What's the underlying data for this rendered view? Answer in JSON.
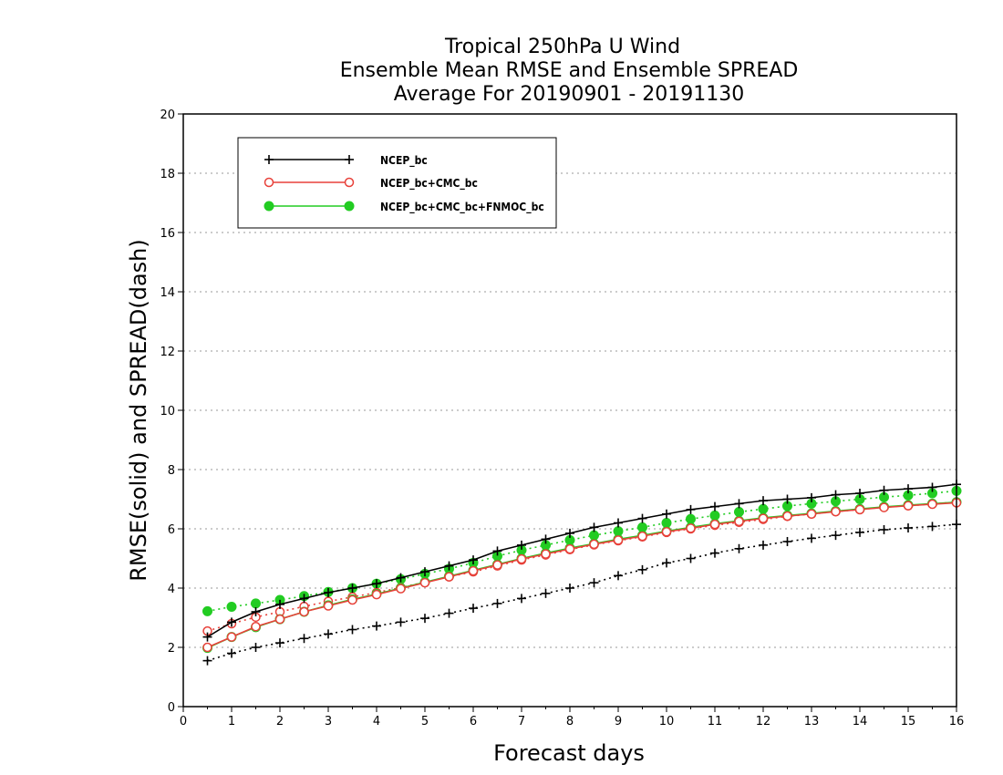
{
  "chart_data": {
    "type": "line",
    "title": [
      "Tropical 250hPa U Wind",
      "Ensemble Mean RMSE and Ensemble SPREAD",
      "Average For 20190901 - 20191130"
    ],
    "xlabel": "Forecast days",
    "ylabel": "RMSE(solid) and SPREAD(dash)",
    "xlim": [
      0,
      16
    ],
    "ylim": [
      0,
      20
    ],
    "xticks": [
      0,
      1,
      2,
      3,
      4,
      5,
      6,
      7,
      8,
      9,
      10,
      11,
      12,
      13,
      14,
      15,
      16
    ],
    "yticks": [
      0,
      2,
      4,
      6,
      8,
      10,
      12,
      14,
      16,
      18,
      20
    ],
    "grid": "dotted horizontal",
    "legend_position": "top-left",
    "x": [
      0.5,
      1,
      1.5,
      2,
      2.5,
      3,
      3.5,
      4,
      4.5,
      5,
      5.5,
      6,
      6.5,
      7,
      7.5,
      8,
      8.5,
      9,
      9.5,
      10,
      10.5,
      11,
      11.5,
      12,
      12.5,
      13,
      13.5,
      14,
      14.5,
      15,
      15.5,
      16
    ],
    "series": [
      {
        "name": "NCEP_bc",
        "color": "#000000",
        "marker": "plus",
        "rmse": [
          2.35,
          2.85,
          3.2,
          3.45,
          3.65,
          3.85,
          4.0,
          4.15,
          4.35,
          4.55,
          4.75,
          4.95,
          5.25,
          5.45,
          5.65,
          5.85,
          6.05,
          6.2,
          6.35,
          6.5,
          6.65,
          6.75,
          6.85,
          6.95,
          7.0,
          7.05,
          7.15,
          7.2,
          7.3,
          7.35,
          7.4,
          7.5
        ],
        "spread": [
          1.55,
          1.8,
          2.0,
          2.15,
          2.3,
          2.45,
          2.6,
          2.72,
          2.85,
          2.98,
          3.15,
          3.32,
          3.48,
          3.65,
          3.82,
          4.0,
          4.18,
          4.42,
          4.62,
          4.85,
          5.0,
          5.18,
          5.33,
          5.45,
          5.57,
          5.68,
          5.78,
          5.88,
          5.97,
          6.03,
          6.08,
          6.15
        ]
      },
      {
        "name": "NCEP_bc+CMC_bc",
        "color": "#e8413a",
        "marker": "open-circle",
        "rmse": [
          2.0,
          2.35,
          2.7,
          2.95,
          3.2,
          3.4,
          3.6,
          3.78,
          3.98,
          4.18,
          4.38,
          4.58,
          4.78,
          4.98,
          5.15,
          5.32,
          5.48,
          5.62,
          5.75,
          5.9,
          6.02,
          6.15,
          6.25,
          6.35,
          6.43,
          6.5,
          6.58,
          6.65,
          6.72,
          6.78,
          6.83,
          6.88
        ],
        "spread": [
          2.55,
          2.8,
          3.02,
          3.2,
          3.38,
          3.55,
          3.7,
          3.85,
          4.02,
          4.2,
          4.38,
          4.55,
          4.75,
          4.95,
          5.12,
          5.3,
          5.46,
          5.6,
          5.73,
          5.88,
          6.0,
          6.12,
          6.22,
          6.32,
          6.42,
          6.5,
          6.58,
          6.65,
          6.73,
          6.78,
          6.84,
          6.9
        ]
      },
      {
        "name": "NCEP_bc+CMC_bc+FNMOC_bc",
        "color": "#22cc22",
        "marker": "filled-circle",
        "rmse": [
          1.98,
          2.35,
          2.68,
          2.95,
          3.2,
          3.42,
          3.62,
          3.8,
          4.0,
          4.2,
          4.4,
          4.6,
          4.8,
          5.0,
          5.18,
          5.35,
          5.5,
          5.65,
          5.78,
          5.92,
          6.05,
          6.17,
          6.27,
          6.37,
          6.45,
          6.52,
          6.6,
          6.67,
          6.74,
          6.8,
          6.85,
          6.9
        ],
        "spread": [
          3.22,
          3.37,
          3.48,
          3.6,
          3.73,
          3.87,
          4.0,
          4.15,
          4.3,
          4.48,
          4.65,
          4.85,
          5.08,
          5.28,
          5.45,
          5.62,
          5.78,
          5.92,
          6.05,
          6.2,
          6.33,
          6.45,
          6.57,
          6.67,
          6.77,
          6.85,
          6.93,
          7.0,
          7.07,
          7.13,
          7.2,
          7.28
        ]
      }
    ]
  }
}
